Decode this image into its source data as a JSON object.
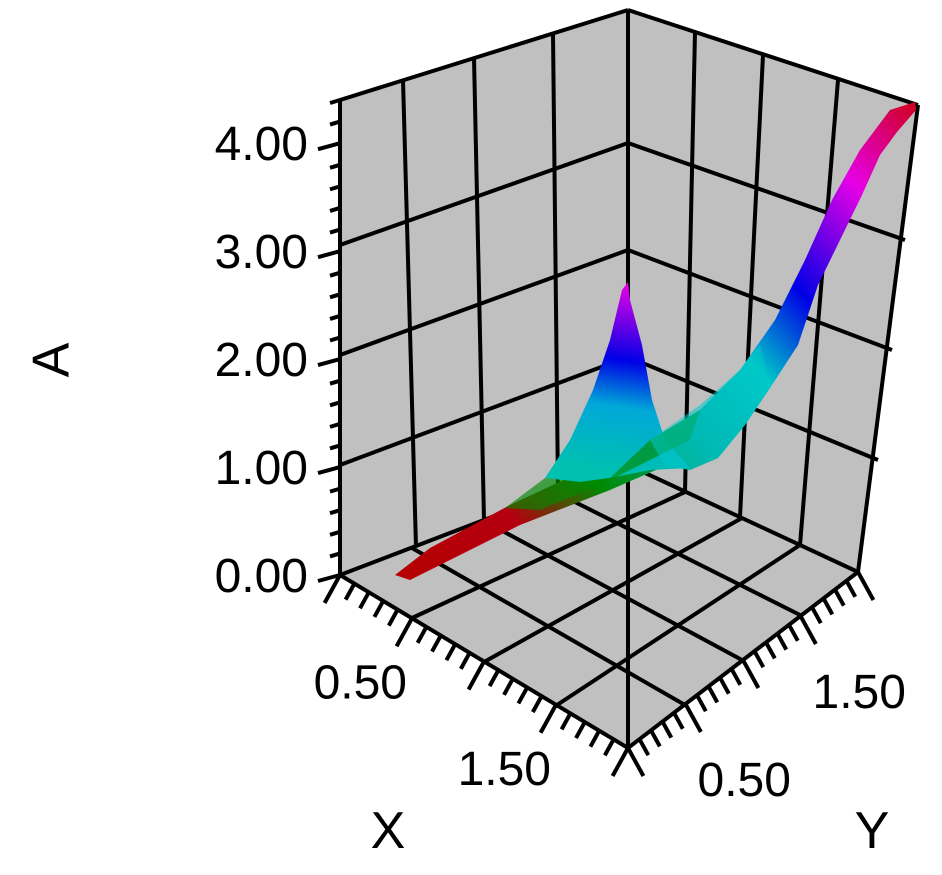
{
  "chart_data": {
    "type": "surface3d",
    "title": "",
    "axes": {
      "z": {
        "title": "A",
        "range": [
          0,
          4.4
        ],
        "ticks": [
          0.0,
          1.0,
          2.0,
          3.0,
          4.0
        ],
        "tick_labels": [
          "0.00",
          "1.00",
          "2.00",
          "3.00",
          "4.00"
        ]
      },
      "x": {
        "title": "X",
        "range": [
          0,
          2
        ],
        "ticks": [
          0.5,
          1.5
        ],
        "tick_labels": [
          "0.50",
          "1.50"
        ]
      },
      "y": {
        "title": "Y",
        "range": [
          0,
          2
        ],
        "ticks": [
          0.5,
          1.5
        ],
        "tick_labels": [
          "0.50",
          "1.50"
        ]
      }
    },
    "grid": true,
    "background": "#c0c0c0",
    "colormap": [
      "#b40000",
      "#008a00",
      "#00c8c8",
      "#0000e6",
      "#e600e6",
      "#d00020"
    ],
    "surface": [
      {
        "x": 0.0,
        "y": 0.0,
        "a": 0.0
      },
      {
        "x": 0.3,
        "y": 0.1,
        "a": 0.15
      },
      {
        "x": 0.8,
        "y": 0.25,
        "a": 0.5
      },
      {
        "x": 1.3,
        "y": 0.4,
        "a": 0.75
      },
      {
        "x": 1.65,
        "y": 0.55,
        "a": 0.85
      },
      {
        "x": 1.85,
        "y": 0.8,
        "a": 1.0
      },
      {
        "x": 1.95,
        "y": 1.2,
        "a": 1.9
      },
      {
        "x": 2.0,
        "y": 1.6,
        "a": 3.4
      },
      {
        "x": 2.0,
        "y": 2.0,
        "a": 4.4
      }
    ],
    "ridge": [
      {
        "x": 0.95,
        "y": 0.3,
        "a": 1.0
      },
      {
        "x": 1.6,
        "y": 0.5,
        "a": 2.9
      },
      {
        "x": 1.75,
        "y": 0.7,
        "a": 1.3
      }
    ]
  }
}
